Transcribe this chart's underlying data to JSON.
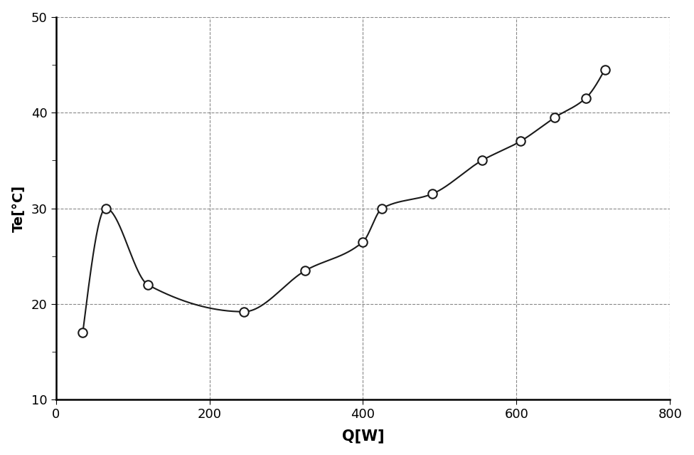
{
  "x": [
    35,
    65,
    120,
    245,
    250,
    325,
    400,
    425,
    490,
    555,
    605,
    650,
    690,
    715
  ],
  "y": [
    17.0,
    30.0,
    22.0,
    19.2,
    19.3,
    23.5,
    26.5,
    30.0,
    31.5,
    35.0,
    37.0,
    39.5,
    41.5,
    44.5
  ],
  "x_markers": [
    35,
    65,
    120,
    245,
    325,
    400,
    425,
    490,
    555,
    605,
    650,
    690,
    715
  ],
  "y_markers": [
    17.0,
    30.0,
    22.0,
    19.2,
    23.5,
    26.5,
    30.0,
    31.5,
    35.0,
    37.0,
    39.5,
    41.5,
    44.5
  ],
  "xlabel": "Q[W]",
  "ylabel": "Te[°C]",
  "xlim": [
    0,
    800
  ],
  "ylim": [
    10,
    50
  ],
  "xticks": [
    0,
    200,
    400,
    600,
    800
  ],
  "yticks": [
    10,
    20,
    30,
    40,
    50
  ],
  "line_color": "#1a1a1a",
  "marker_color": "#1a1a1a",
  "background_color": "#ffffff",
  "grid_color": "#888888",
  "xlabel_fontsize": 15,
  "ylabel_fontsize": 14,
  "tick_fontsize": 13,
  "xlabel_fontweight": "bold",
  "ylabel_fontweight": "bold",
  "minor_yticks": [
    15,
    25,
    35,
    45
  ]
}
